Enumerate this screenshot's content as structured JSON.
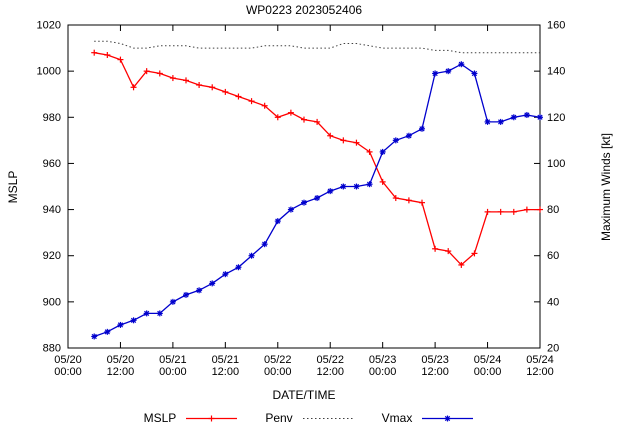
{
  "chart_data": {
    "type": "line",
    "title": "WP0223 2023052406",
    "xlabel": "DATE/TIME",
    "ylabel_left": "MSLP",
    "ylabel_right": "Maximum Winds [kt]",
    "x_range_hours": [
      0,
      108
    ],
    "ylim_left": [
      880,
      1020
    ],
    "ylim_right": [
      20,
      160
    ],
    "yticks_left": [
      880,
      900,
      920,
      940,
      960,
      980,
      1000,
      1020
    ],
    "yticks_right": [
      20,
      40,
      60,
      80,
      100,
      120,
      140,
      160
    ],
    "grid": false,
    "legend_position": "bottom",
    "x_ticks": [
      {
        "hour": 0,
        "date": "05/20",
        "time": "00:00"
      },
      {
        "hour": 12,
        "date": "05/20",
        "time": "12:00"
      },
      {
        "hour": 24,
        "date": "05/21",
        "time": "00:00"
      },
      {
        "hour": 36,
        "date": "05/21",
        "time": "12:00"
      },
      {
        "hour": 48,
        "date": "05/22",
        "time": "00:00"
      },
      {
        "hour": 60,
        "date": "05/22",
        "time": "12:00"
      },
      {
        "hour": 72,
        "date": "05/23",
        "time": "00:00"
      },
      {
        "hour": 84,
        "date": "05/23",
        "time": "12:00"
      },
      {
        "hour": 96,
        "date": "05/24",
        "time": "00:00"
      },
      {
        "hour": 108,
        "date": "05/24",
        "time": "12:00"
      }
    ],
    "series": [
      {
        "name": "MSLP",
        "axis": "left",
        "color": "#ff0000",
        "marker": "plus",
        "line": "solid",
        "hours": [
          6,
          9,
          12,
          15,
          18,
          21,
          24,
          27,
          30,
          33,
          36,
          39,
          42,
          45,
          48,
          51,
          54,
          57,
          60,
          63,
          66,
          69,
          72,
          75,
          78,
          81,
          84,
          87,
          90,
          93,
          96,
          99,
          102,
          105,
          108
        ],
        "values": [
          1008,
          1007,
          1005,
          993,
          1000,
          999,
          997,
          996,
          994,
          993,
          991,
          989,
          987,
          985,
          980,
          982,
          979,
          978,
          972,
          970,
          969,
          965,
          952,
          945,
          944,
          943,
          923,
          922,
          916,
          921,
          939,
          939,
          939,
          940,
          940
        ]
      },
      {
        "name": "Penv",
        "axis": "left",
        "color": "#404040",
        "marker": "none",
        "line": "dotted",
        "hours": [
          6,
          9,
          12,
          15,
          18,
          21,
          24,
          27,
          30,
          33,
          36,
          39,
          42,
          45,
          48,
          51,
          54,
          57,
          60,
          63,
          66,
          69,
          72,
          75,
          78,
          81,
          84,
          87,
          90,
          93,
          96,
          99,
          102,
          105,
          108
        ],
        "values": [
          1013,
          1013,
          1012,
          1010,
          1010,
          1011,
          1011,
          1011,
          1010,
          1010,
          1010,
          1010,
          1010,
          1011,
          1011,
          1011,
          1010,
          1010,
          1010,
          1012,
          1012,
          1011,
          1010,
          1010,
          1010,
          1010,
          1009,
          1009,
          1008,
          1008,
          1008,
          1008,
          1008,
          1008,
          1008
        ]
      },
      {
        "name": "Vmax",
        "axis": "right",
        "color": "#0000cd",
        "marker": "star",
        "line": "solid",
        "hours": [
          6,
          9,
          12,
          15,
          18,
          21,
          24,
          27,
          30,
          33,
          36,
          39,
          42,
          45,
          48,
          51,
          54,
          57,
          60,
          63,
          66,
          69,
          72,
          75,
          78,
          81,
          84,
          87,
          90,
          93,
          96,
          99,
          102,
          105,
          108
        ],
        "values": [
          25,
          27,
          30,
          32,
          35,
          35,
          40,
          43,
          45,
          48,
          52,
          55,
          60,
          65,
          75,
          80,
          83,
          85,
          88,
          90,
          90,
          91,
          105,
          110,
          112,
          115,
          139,
          140,
          143,
          139,
          118,
          118,
          120,
          121,
          120
        ]
      }
    ]
  }
}
